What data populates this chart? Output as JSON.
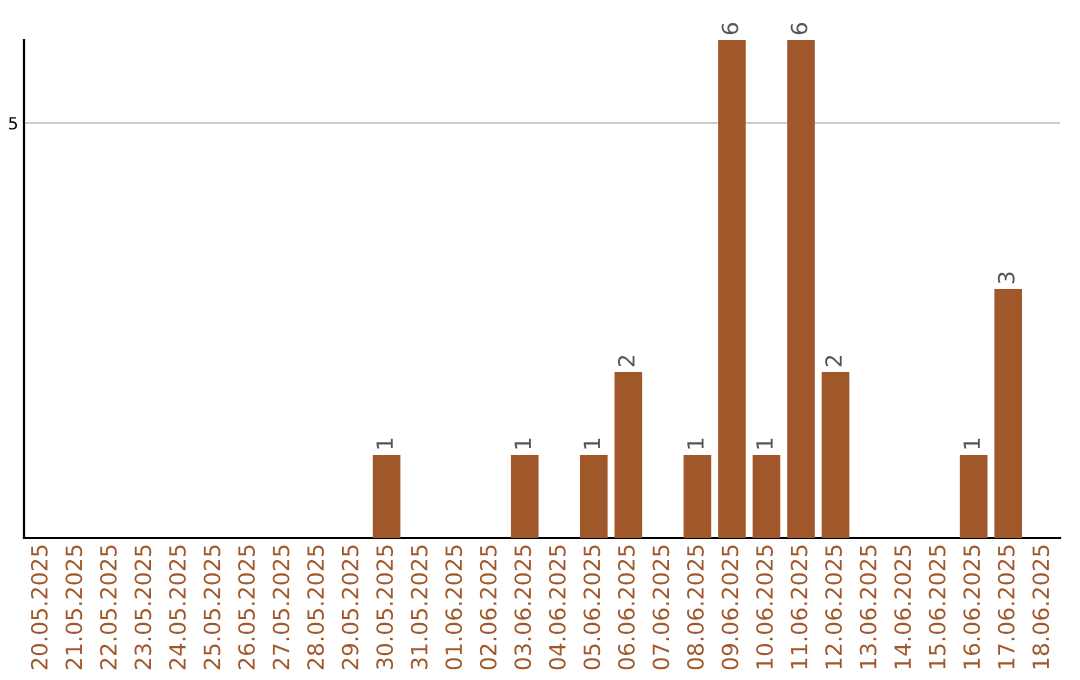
{
  "chart_data": {
    "type": "bar",
    "categories": [
      "20.05.2025",
      "21.05.2025",
      "22.05.2025",
      "23.05.2025",
      "24.05.2025",
      "25.05.2025",
      "26.05.2025",
      "27.05.2025",
      "28.05.2025",
      "29.05.2025",
      "30.05.2025",
      "31.05.2025",
      "01.06.2025",
      "02.06.2025",
      "03.06.2025",
      "04.06.2025",
      "05.06.2025",
      "06.06.2025",
      "07.06.2025",
      "08.06.2025",
      "09.06.2025",
      "10.06.2025",
      "11.06.2025",
      "12.06.2025",
      "13.06.2025",
      "14.06.2025",
      "15.06.2025",
      "16.06.2025",
      "17.06.2025",
      "18.06.2025"
    ],
    "values": [
      0,
      0,
      0,
      0,
      0,
      0,
      0,
      0,
      0,
      0,
      1,
      0,
      0,
      0,
      1,
      0,
      1,
      2,
      0,
      1,
      6,
      1,
      6,
      2,
      0,
      0,
      0,
      1,
      3,
      0
    ],
    "value_labels": [
      null,
      null,
      null,
      null,
      null,
      null,
      null,
      null,
      null,
      null,
      "1",
      null,
      null,
      null,
      "1",
      null,
      "1",
      "2",
      null,
      "1",
      "6",
      "1",
      "6",
      "2",
      null,
      null,
      null,
      "1",
      "3",
      null
    ],
    "color": "#a0582a",
    "ylim": [
      0,
      6
    ],
    "yticks": [
      5
    ],
    "grid": "y"
  }
}
